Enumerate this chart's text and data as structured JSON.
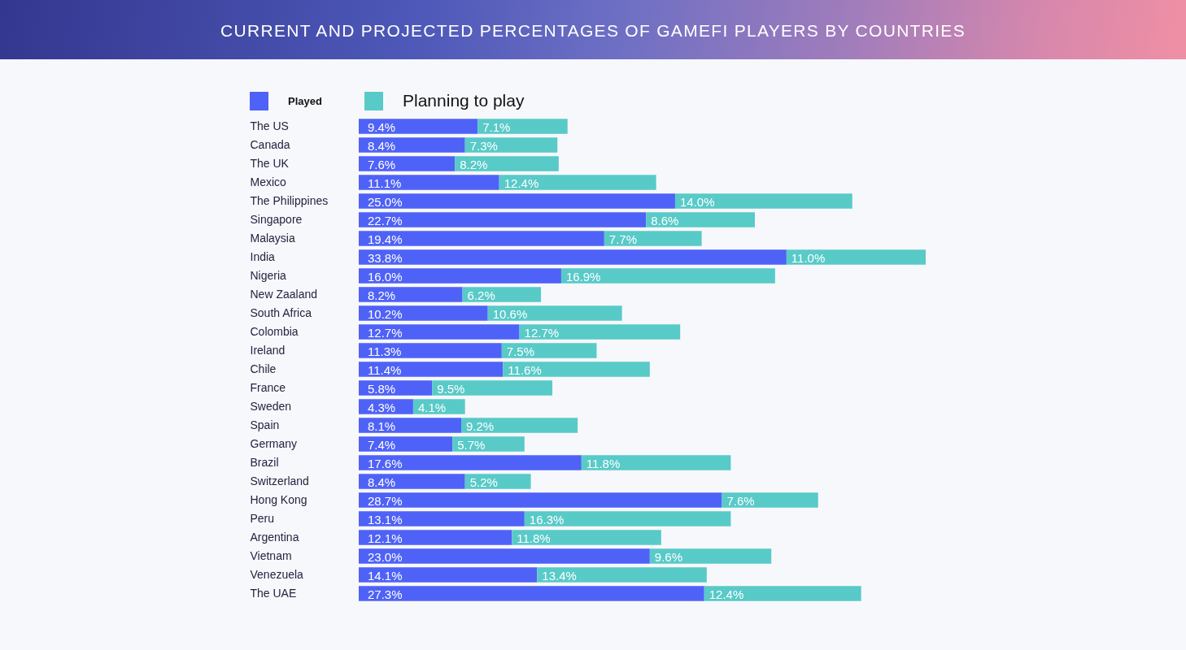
{
  "chart_data": {
    "type": "bar",
    "title": "CURRENT AND PROJECTED PERCENTAGES OF GAMEFI PLAYERS BY COUNTRIES",
    "orientation": "horizontal",
    "stacked": true,
    "legend": "top left",
    "tick_labels": "y",
    "categories": [
      "The US",
      "Canada",
      "The UK",
      "Mexico",
      "The Philippines",
      "Singapore",
      "Malaysia",
      "India",
      "Nigeria",
      "New Zaaland",
      "South Africa",
      "Colombia",
      "Ireland",
      "Chile",
      "France",
      "Sweden",
      "Spain",
      "Germany",
      "Brazil",
      "Switzerland",
      "Hong Kong",
      "Peru",
      "Argentina",
      "Vietnam",
      "Venezuela",
      "The UAE"
    ],
    "series": [
      {
        "name": "Played",
        "color": "#4f62f7",
        "values": [
          9.4,
          8.4,
          7.6,
          11.1,
          25.0,
          22.7,
          19.4,
          33.8,
          16.0,
          8.2,
          10.2,
          12.7,
          11.3,
          11.4,
          5.8,
          4.3,
          8.1,
          7.4,
          17.6,
          8.4,
          28.7,
          13.1,
          12.1,
          23.0,
          14.1,
          27.3
        ],
        "value_labels": [
          "9.4%",
          "8.4%",
          "7.6%",
          "11.1%",
          "25.0%",
          "22.7%",
          "19.4%",
          "33.8%",
          "16.0%",
          "8.2%",
          "10.2%",
          "12.7%",
          "11.3%",
          "11.4%",
          "5.8%",
          "4.3%",
          "8.1%",
          "7.4%",
          "17.6%",
          "8.4%",
          "28.7%",
          "13.1%",
          "12.1%",
          "23.0%",
          "14.1%",
          "27.3%"
        ]
      },
      {
        "name": "Planning to play",
        "color": "#58cac8",
        "values": [
          7.1,
          7.3,
          8.2,
          12.4,
          14.0,
          8.6,
          7.7,
          11.0,
          16.9,
          6.2,
          10.6,
          12.7,
          7.5,
          11.6,
          9.5,
          4.1,
          9.2,
          5.7,
          11.8,
          5.2,
          7.6,
          16.3,
          11.8,
          9.6,
          13.4,
          12.4
        ],
        "value_labels": [
          "7.1%",
          "7.3%",
          "8.2%",
          "12.4%",
          "14.0%",
          "8.6%",
          "7.7%",
          "11.0%",
          "16.9%",
          "6.2%",
          "10.6%",
          "12.7%",
          "7.5%",
          "11.6%",
          "9.5%",
          "4.1%",
          "9.2%",
          "5.7%",
          "11.8%",
          "5.2%",
          "7.6%",
          "16.3%",
          "11.8%",
          "9.6%",
          "13.4%",
          "12.4%"
        ]
      }
    ]
  }
}
